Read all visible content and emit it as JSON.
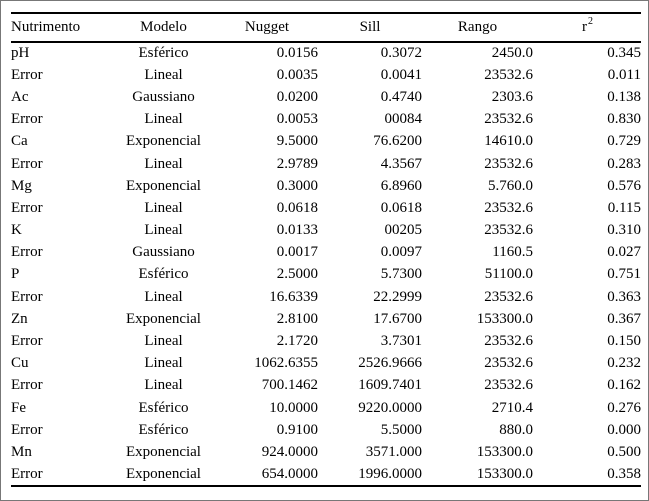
{
  "table": {
    "columns": [
      {
        "key": "nutrimento",
        "label": "Nutrimento",
        "align": "left"
      },
      {
        "key": "modelo",
        "label": "Modelo",
        "align": "center"
      },
      {
        "key": "nugget",
        "label": "Nugget",
        "align": "right"
      },
      {
        "key": "sill",
        "label": "Sill",
        "align": "right"
      },
      {
        "key": "rango",
        "label": "Rango",
        "align": "right"
      },
      {
        "key": "r2",
        "label": "r",
        "superscript": "2",
        "align": "right"
      }
    ],
    "rows": [
      [
        "pH",
        "Esférico",
        "0.0156",
        "0.3072",
        "2450.0",
        "0.345"
      ],
      [
        "Error",
        "Lineal",
        "0.0035",
        "0.0041",
        "23532.6",
        "0.011"
      ],
      [
        "Ac",
        "Gaussiano",
        "0.0200",
        "0.4740",
        "2303.6",
        "0.138"
      ],
      [
        "Error",
        "Lineal",
        "0.0053",
        "00084",
        "23532.6",
        "0.830"
      ],
      [
        "Ca",
        "Exponencial",
        "9.5000",
        "76.6200",
        "14610.0",
        "0.729"
      ],
      [
        "Error",
        "Lineal",
        "2.9789",
        "4.3567",
        "23532.6",
        "0.283"
      ],
      [
        "Mg",
        "Exponencial",
        "0.3000",
        "6.8960",
        "5.760.0",
        "0.576"
      ],
      [
        "Error",
        "Lineal",
        "0.0618",
        "0.0618",
        "23532.6",
        "0.115"
      ],
      [
        "K",
        "Lineal",
        "0.0133",
        "00205",
        "23532.6",
        "0.310"
      ],
      [
        "Error",
        "Gaussiano",
        "0.0017",
        "0.0097",
        "1160.5",
        "0.027"
      ],
      [
        "P",
        "Esférico",
        "2.5000",
        "5.7300",
        "51100.0",
        "0.751"
      ],
      [
        "Error",
        "Lineal",
        "16.6339",
        "22.2999",
        "23532.6",
        "0.363"
      ],
      [
        "Zn",
        "Exponencial",
        "2.8100",
        "17.6700",
        "153300.0",
        "0.367"
      ],
      [
        "Error",
        "Lineal",
        "2.1720",
        "3.7301",
        "23532.6",
        "0.150"
      ],
      [
        "Cu",
        "Lineal",
        "1062.6355",
        "2526.9666",
        "23532.6",
        "0.232"
      ],
      [
        "Error",
        "Lineal",
        "700.1462",
        "1609.7401",
        "23532.6",
        "0.162"
      ],
      [
        "Fe",
        "Esférico",
        "10.0000",
        "9220.0000",
        "2710.4",
        "0.276"
      ],
      [
        "Error",
        "Esférico",
        "0.9100",
        "5.5000",
        "880.0",
        "0.000"
      ],
      [
        "Mn",
        "Exponencial",
        "924.0000",
        "3571.000",
        "153300.0",
        "0.500"
      ],
      [
        "Error",
        "Exponencial",
        "654.0000",
        "1996.0000",
        "153300.0",
        "0.358"
      ]
    ]
  },
  "colors": {
    "text": "#000000",
    "background": "#ffffff",
    "rule": "#000000",
    "frame": "#777777"
  }
}
